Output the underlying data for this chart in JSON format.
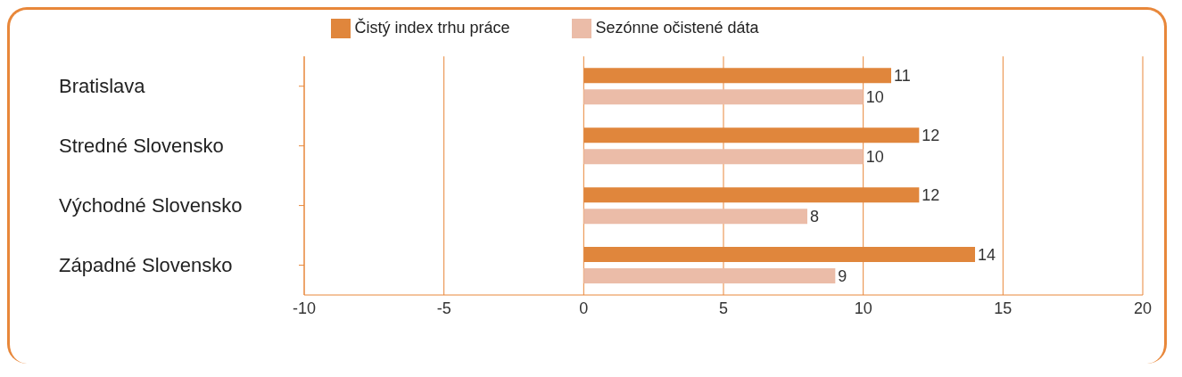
{
  "chart_data": {
    "type": "bar",
    "orientation": "horizontal",
    "categories": [
      "Bratislava",
      "Stredné Slovensko",
      "Východné Slovensko",
      "Západné Slovensko"
    ],
    "series": [
      {
        "name": "Čistý index trhu práce",
        "color": "#e0863c",
        "values": [
          11,
          12,
          12,
          14
        ]
      },
      {
        "name": "Sezónne očistené dáta",
        "color": "#ebbca8",
        "values": [
          10,
          10,
          8,
          9
        ]
      }
    ],
    "xlim": [
      -10,
      20
    ],
    "xticks": [
      -10,
      -5,
      0,
      5,
      10,
      15,
      20
    ],
    "grid": "x",
    "legend": "top",
    "data_labels": true
  }
}
